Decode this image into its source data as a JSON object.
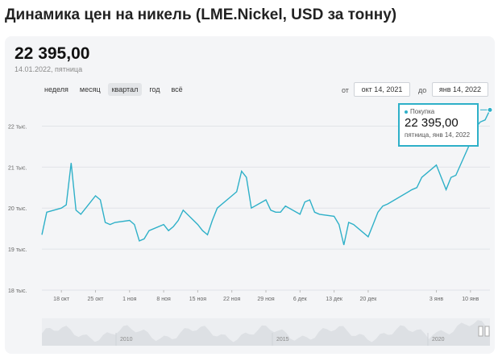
{
  "page": {
    "title": "Динамика цен на никель (LME.Nickel, USD за тонну)"
  },
  "header": {
    "value": "22 395,00",
    "date": "14.01.2022, пятница"
  },
  "ranges": [
    {
      "label": "неделя",
      "active": false
    },
    {
      "label": "месяц",
      "active": false
    },
    {
      "label": "квартал",
      "active": true
    },
    {
      "label": "год",
      "active": false
    },
    {
      "label": "всё",
      "active": false
    }
  ],
  "date_range": {
    "from_label": "от",
    "from_value": "окт 14, 2021",
    "to_label": "до",
    "to_value": "янв 14, 2022"
  },
  "tooltip": {
    "series": "Покупка",
    "value": "22 395,00",
    "date": "пятница, янв 14, 2022"
  },
  "colors": {
    "line": "#2eb0c8",
    "grid": "#e1e4e8",
    "navigator": "#dde0e4"
  },
  "chart_data": {
    "type": "line",
    "y_unit": "тыс.",
    "ylim": [
      18000,
      22500
    ],
    "y_ticks": [
      {
        "value": 18000,
        "label": "18 тыс."
      },
      {
        "value": 19000,
        "label": "19 тыс."
      },
      {
        "value": 20000,
        "label": "20 тыс."
      },
      {
        "value": 21000,
        "label": "21 тыс."
      },
      {
        "value": 22000,
        "label": "22 тыс."
      }
    ],
    "x_ticks": [
      {
        "date": "2021-10-18",
        "label": "18 окт"
      },
      {
        "date": "2021-10-25",
        "label": "25 окт"
      },
      {
        "date": "2021-11-01",
        "label": "1 ноя"
      },
      {
        "date": "2021-11-08",
        "label": "8 ноя"
      },
      {
        "date": "2021-11-15",
        "label": "15 ноя"
      },
      {
        "date": "2021-11-22",
        "label": "22 ноя"
      },
      {
        "date": "2021-11-29",
        "label": "29 ноя"
      },
      {
        "date": "2021-12-06",
        "label": "6 дек"
      },
      {
        "date": "2021-12-13",
        "label": "13 дек"
      },
      {
        "date": "2021-12-20",
        "label": "20 дек"
      },
      {
        "date": "2022-01-03",
        "label": "3 янв"
      },
      {
        "date": "2022-01-10",
        "label": "10 янв"
      }
    ],
    "grid": true,
    "series": [
      {
        "name": "Покупка",
        "points": [
          [
            "2021-10-14",
            19350
          ],
          [
            "2021-10-15",
            19900
          ],
          [
            "2021-10-18",
            20000
          ],
          [
            "2021-10-19",
            20080
          ],
          [
            "2021-10-20",
            21100
          ],
          [
            "2021-10-21",
            19950
          ],
          [
            "2021-10-22",
            19850
          ],
          [
            "2021-10-25",
            20300
          ],
          [
            "2021-10-26",
            20200
          ],
          [
            "2021-10-27",
            19650
          ],
          [
            "2021-10-28",
            19600
          ],
          [
            "2021-10-29",
            19650
          ],
          [
            "2021-11-01",
            19700
          ],
          [
            "2021-11-02",
            19600
          ],
          [
            "2021-11-03",
            19200
          ],
          [
            "2021-11-04",
            19250
          ],
          [
            "2021-11-05",
            19450
          ],
          [
            "2021-11-08",
            19600
          ],
          [
            "2021-11-09",
            19450
          ],
          [
            "2021-11-10",
            19550
          ],
          [
            "2021-11-11",
            19700
          ],
          [
            "2021-11-12",
            19950
          ],
          [
            "2021-11-15",
            19600
          ],
          [
            "2021-11-16",
            19450
          ],
          [
            "2021-11-17",
            19350
          ],
          [
            "2021-11-18",
            19700
          ],
          [
            "2021-11-19",
            20000
          ],
          [
            "2021-11-22",
            20300
          ],
          [
            "2021-11-23",
            20400
          ],
          [
            "2021-11-24",
            20900
          ],
          [
            "2021-11-25",
            20750
          ],
          [
            "2021-11-26",
            20000
          ],
          [
            "2021-11-29",
            20200
          ],
          [
            "2021-11-30",
            19950
          ],
          [
            "2021-12-01",
            19900
          ],
          [
            "2021-12-02",
            19900
          ],
          [
            "2021-12-03",
            20050
          ],
          [
            "2021-12-06",
            19850
          ],
          [
            "2021-12-07",
            20150
          ],
          [
            "2021-12-08",
            20200
          ],
          [
            "2021-12-09",
            19900
          ],
          [
            "2021-12-10",
            19850
          ],
          [
            "2021-12-13",
            19800
          ],
          [
            "2021-12-14",
            19600
          ],
          [
            "2021-12-15",
            19100
          ],
          [
            "2021-12-16",
            19650
          ],
          [
            "2021-12-17",
            19600
          ],
          [
            "2021-12-20",
            19300
          ],
          [
            "2021-12-21",
            19600
          ],
          [
            "2021-12-22",
            19900
          ],
          [
            "2021-12-23",
            20050
          ],
          [
            "2021-12-24",
            20100
          ],
          [
            "2021-12-29",
            20450
          ],
          [
            "2021-12-30",
            20500
          ],
          [
            "2021-12-31",
            20750
          ],
          [
            "2022-01-03",
            21050
          ],
          [
            "2022-01-04",
            20750
          ],
          [
            "2022-01-05",
            20450
          ],
          [
            "2022-01-06",
            20750
          ],
          [
            "2022-01-07",
            20800
          ],
          [
            "2022-01-10",
            21600
          ],
          [
            "2022-01-11",
            21950
          ],
          [
            "2022-01-12",
            22100
          ],
          [
            "2022-01-13",
            22150
          ],
          [
            "2022-01-14",
            22395
          ]
        ]
      }
    ]
  },
  "navigator": {
    "year_labels": [
      "2010",
      "2015",
      "2020"
    ]
  }
}
